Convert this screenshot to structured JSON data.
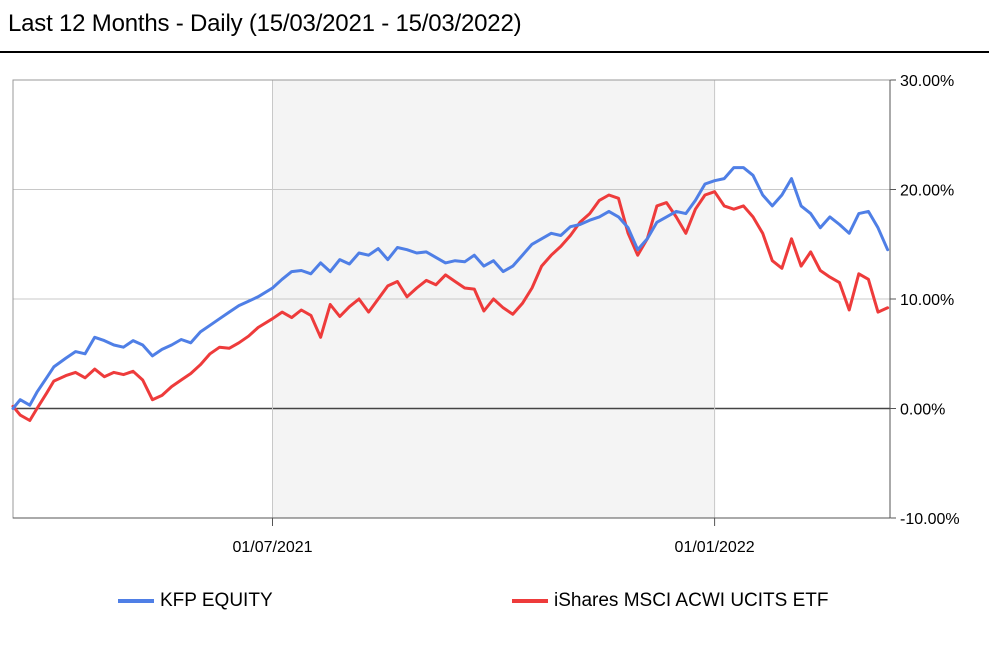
{
  "header": {
    "title": "Last 12 Months - Daily (15/03/2021 - 15/03/2022)"
  },
  "chart_data": {
    "type": "line",
    "title": "Last 12 Months - Daily (15/03/2021 - 15/03/2022)",
    "xlabel": "",
    "ylabel": "",
    "x_range": [
      "2021-03-15",
      "2022-03-15"
    ],
    "ylim": [
      -10,
      30
    ],
    "y_ticks": [
      -10,
      0,
      10,
      20,
      30
    ],
    "y_tick_labels": [
      "-10.00%",
      "0.00%",
      "10.00%",
      "20.00%",
      "30.00%"
    ],
    "x_ticks": [
      "2021-07-01",
      "2022-01-01"
    ],
    "x_tick_labels": [
      "01/07/2021",
      "01/01/2022"
    ],
    "shaded_range": [
      "2021-07-01",
      "2022-01-01"
    ],
    "grid": true,
    "legend_position": "bottom",
    "series": [
      {
        "name": "KFP EQUITY",
        "color": "#4f7fe6",
        "points": [
          [
            "2021-03-15",
            0.0
          ],
          [
            "2021-03-18",
            0.8
          ],
          [
            "2021-03-22",
            0.3
          ],
          [
            "2021-03-25",
            1.5
          ],
          [
            "2021-03-29",
            2.8
          ],
          [
            "2021-04-01",
            3.8
          ],
          [
            "2021-04-06",
            4.6
          ],
          [
            "2021-04-10",
            5.2
          ],
          [
            "2021-04-14",
            5.0
          ],
          [
            "2021-04-18",
            6.5
          ],
          [
            "2021-04-22",
            6.2
          ],
          [
            "2021-04-26",
            5.8
          ],
          [
            "2021-04-30",
            5.6
          ],
          [
            "2021-05-04",
            6.2
          ],
          [
            "2021-05-08",
            5.8
          ],
          [
            "2021-05-12",
            4.8
          ],
          [
            "2021-05-16",
            5.4
          ],
          [
            "2021-05-20",
            5.8
          ],
          [
            "2021-05-24",
            6.3
          ],
          [
            "2021-05-28",
            6.0
          ],
          [
            "2021-06-01",
            7.0
          ],
          [
            "2021-06-05",
            7.6
          ],
          [
            "2021-06-09",
            8.2
          ],
          [
            "2021-06-13",
            8.8
          ],
          [
            "2021-06-17",
            9.4
          ],
          [
            "2021-06-21",
            9.8
          ],
          [
            "2021-06-25",
            10.2
          ],
          [
            "2021-07-01",
            11.0
          ],
          [
            "2021-07-05",
            11.8
          ],
          [
            "2021-07-09",
            12.5
          ],
          [
            "2021-07-13",
            12.6
          ],
          [
            "2021-07-17",
            12.3
          ],
          [
            "2021-07-21",
            13.3
          ],
          [
            "2021-07-25",
            12.5
          ],
          [
            "2021-07-29",
            13.6
          ],
          [
            "2021-08-02",
            13.2
          ],
          [
            "2021-08-06",
            14.2
          ],
          [
            "2021-08-10",
            14.0
          ],
          [
            "2021-08-14",
            14.6
          ],
          [
            "2021-08-18",
            13.6
          ],
          [
            "2021-08-22",
            14.7
          ],
          [
            "2021-08-26",
            14.5
          ],
          [
            "2021-08-30",
            14.2
          ],
          [
            "2021-09-03",
            14.3
          ],
          [
            "2021-09-07",
            13.8
          ],
          [
            "2021-09-11",
            13.3
          ],
          [
            "2021-09-15",
            13.5
          ],
          [
            "2021-09-19",
            13.4
          ],
          [
            "2021-09-23",
            14.0
          ],
          [
            "2021-09-27",
            13.0
          ],
          [
            "2021-10-01",
            13.5
          ],
          [
            "2021-10-05",
            12.5
          ],
          [
            "2021-10-09",
            13.0
          ],
          [
            "2021-10-13",
            14.0
          ],
          [
            "2021-10-17",
            15.0
          ],
          [
            "2021-10-21",
            15.5
          ],
          [
            "2021-10-25",
            16.0
          ],
          [
            "2021-10-29",
            15.8
          ],
          [
            "2021-11-02",
            16.6
          ],
          [
            "2021-11-06",
            16.8
          ],
          [
            "2021-11-10",
            17.2
          ],
          [
            "2021-11-14",
            17.5
          ],
          [
            "2021-11-18",
            18.0
          ],
          [
            "2021-11-22",
            17.5
          ],
          [
            "2021-11-26",
            16.5
          ],
          [
            "2021-11-30",
            14.5
          ],
          [
            "2021-12-04",
            15.5
          ],
          [
            "2021-12-08",
            17.0
          ],
          [
            "2021-12-12",
            17.5
          ],
          [
            "2021-12-16",
            18.0
          ],
          [
            "2021-12-20",
            17.8
          ],
          [
            "2021-12-24",
            19.0
          ],
          [
            "2021-12-28",
            20.5
          ],
          [
            "2022-01-01",
            20.8
          ],
          [
            "2022-01-05",
            21.0
          ],
          [
            "2022-01-09",
            22.0
          ],
          [
            "2022-01-13",
            22.0
          ],
          [
            "2022-01-17",
            21.3
          ],
          [
            "2022-01-21",
            19.5
          ],
          [
            "2022-01-25",
            18.5
          ],
          [
            "2022-01-29",
            19.5
          ],
          [
            "2022-02-02",
            21.0
          ],
          [
            "2022-02-06",
            18.5
          ],
          [
            "2022-02-10",
            17.8
          ],
          [
            "2022-02-14",
            16.5
          ],
          [
            "2022-02-18",
            17.5
          ],
          [
            "2022-02-22",
            16.8
          ],
          [
            "2022-02-26",
            16.0
          ],
          [
            "2022-03-02",
            17.8
          ],
          [
            "2022-03-06",
            18.0
          ],
          [
            "2022-03-10",
            16.5
          ],
          [
            "2022-03-14",
            14.5
          ]
        ]
      },
      {
        "name": "iShares MSCI ACWI UCITS ETF",
        "color": "#ee3b3b",
        "points": [
          [
            "2021-03-15",
            0.2
          ],
          [
            "2021-03-18",
            -0.6
          ],
          [
            "2021-03-22",
            -1.1
          ],
          [
            "2021-03-25",
            0.0
          ],
          [
            "2021-03-29",
            1.4
          ],
          [
            "2021-04-01",
            2.5
          ],
          [
            "2021-04-06",
            3.0
          ],
          [
            "2021-04-10",
            3.3
          ],
          [
            "2021-04-14",
            2.8
          ],
          [
            "2021-04-18",
            3.6
          ],
          [
            "2021-04-22",
            2.9
          ],
          [
            "2021-04-26",
            3.3
          ],
          [
            "2021-04-30",
            3.1
          ],
          [
            "2021-05-04",
            3.4
          ],
          [
            "2021-05-08",
            2.6
          ],
          [
            "2021-05-12",
            0.8
          ],
          [
            "2021-05-16",
            1.2
          ],
          [
            "2021-05-20",
            2.0
          ],
          [
            "2021-05-24",
            2.6
          ],
          [
            "2021-05-28",
            3.2
          ],
          [
            "2021-06-01",
            4.0
          ],
          [
            "2021-06-05",
            5.0
          ],
          [
            "2021-06-09",
            5.6
          ],
          [
            "2021-06-13",
            5.5
          ],
          [
            "2021-06-17",
            6.0
          ],
          [
            "2021-06-21",
            6.6
          ],
          [
            "2021-06-25",
            7.4
          ],
          [
            "2021-07-01",
            8.2
          ],
          [
            "2021-07-05",
            8.8
          ],
          [
            "2021-07-09",
            8.3
          ],
          [
            "2021-07-13",
            9.0
          ],
          [
            "2021-07-17",
            8.5
          ],
          [
            "2021-07-21",
            6.5
          ],
          [
            "2021-07-25",
            9.5
          ],
          [
            "2021-07-29",
            8.4
          ],
          [
            "2021-08-02",
            9.3
          ],
          [
            "2021-08-06",
            10.0
          ],
          [
            "2021-08-10",
            8.8
          ],
          [
            "2021-08-14",
            10.0
          ],
          [
            "2021-08-18",
            11.2
          ],
          [
            "2021-08-22",
            11.6
          ],
          [
            "2021-08-26",
            10.2
          ],
          [
            "2021-08-30",
            11.0
          ],
          [
            "2021-09-03",
            11.7
          ],
          [
            "2021-09-07",
            11.3
          ],
          [
            "2021-09-11",
            12.2
          ],
          [
            "2021-09-15",
            11.6
          ],
          [
            "2021-09-19",
            11.0
          ],
          [
            "2021-09-23",
            10.9
          ],
          [
            "2021-09-27",
            8.9
          ],
          [
            "2021-10-01",
            10.0
          ],
          [
            "2021-10-05",
            9.2
          ],
          [
            "2021-10-09",
            8.6
          ],
          [
            "2021-10-13",
            9.6
          ],
          [
            "2021-10-17",
            11.0
          ],
          [
            "2021-10-21",
            13.0
          ],
          [
            "2021-10-25",
            14.0
          ],
          [
            "2021-10-29",
            14.8
          ],
          [
            "2021-11-02",
            15.8
          ],
          [
            "2021-11-06",
            17.0
          ],
          [
            "2021-11-10",
            17.8
          ],
          [
            "2021-11-14",
            19.0
          ],
          [
            "2021-11-18",
            19.5
          ],
          [
            "2021-11-22",
            19.2
          ],
          [
            "2021-11-26",
            16.0
          ],
          [
            "2021-11-30",
            14.0
          ],
          [
            "2021-12-04",
            15.5
          ],
          [
            "2021-12-08",
            18.5
          ],
          [
            "2021-12-12",
            18.8
          ],
          [
            "2021-12-16",
            17.5
          ],
          [
            "2021-12-20",
            16.0
          ],
          [
            "2021-12-24",
            18.2
          ],
          [
            "2021-12-28",
            19.5
          ],
          [
            "2022-01-01",
            19.8
          ],
          [
            "2022-01-05",
            18.5
          ],
          [
            "2022-01-09",
            18.2
          ],
          [
            "2022-01-13",
            18.5
          ],
          [
            "2022-01-17",
            17.5
          ],
          [
            "2022-01-21",
            16.0
          ],
          [
            "2022-01-25",
            13.5
          ],
          [
            "2022-01-29",
            12.8
          ],
          [
            "2022-02-02",
            15.5
          ],
          [
            "2022-02-06",
            13.0
          ],
          [
            "2022-02-10",
            14.3
          ],
          [
            "2022-02-14",
            12.6
          ],
          [
            "2022-02-18",
            12.0
          ],
          [
            "2022-02-22",
            11.5
          ],
          [
            "2022-02-26",
            9.0
          ],
          [
            "2022-03-02",
            12.3
          ],
          [
            "2022-03-06",
            11.8
          ],
          [
            "2022-03-10",
            8.8
          ],
          [
            "2022-03-14",
            9.2
          ]
        ]
      }
    ]
  }
}
